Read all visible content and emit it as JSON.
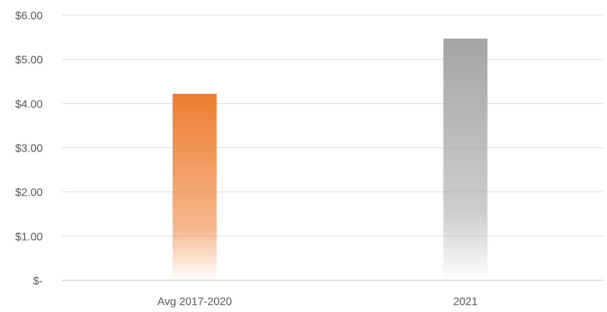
{
  "chart_data": {
    "type": "bar",
    "title": "",
    "xlabel": "",
    "ylabel": "",
    "categories": [
      "Avg 2017-2020",
      "2021"
    ],
    "values": [
      4.22,
      5.47
    ],
    "ylim": [
      0,
      6
    ],
    "yticks": [
      {
        "value": 0,
        "label": "$-"
      },
      {
        "value": 1,
        "label": "$1.00"
      },
      {
        "value": 2,
        "label": "$2.00"
      },
      {
        "value": 3,
        "label": "$3.00"
      },
      {
        "value": 4,
        "label": "$4.00"
      },
      {
        "value": 5,
        "label": "$5.00"
      },
      {
        "value": 6,
        "label": "$6.00"
      }
    ],
    "grid": true,
    "legend": "none",
    "bar_colors": [
      "#ED7D31",
      "#A5A5A5"
    ]
  }
}
